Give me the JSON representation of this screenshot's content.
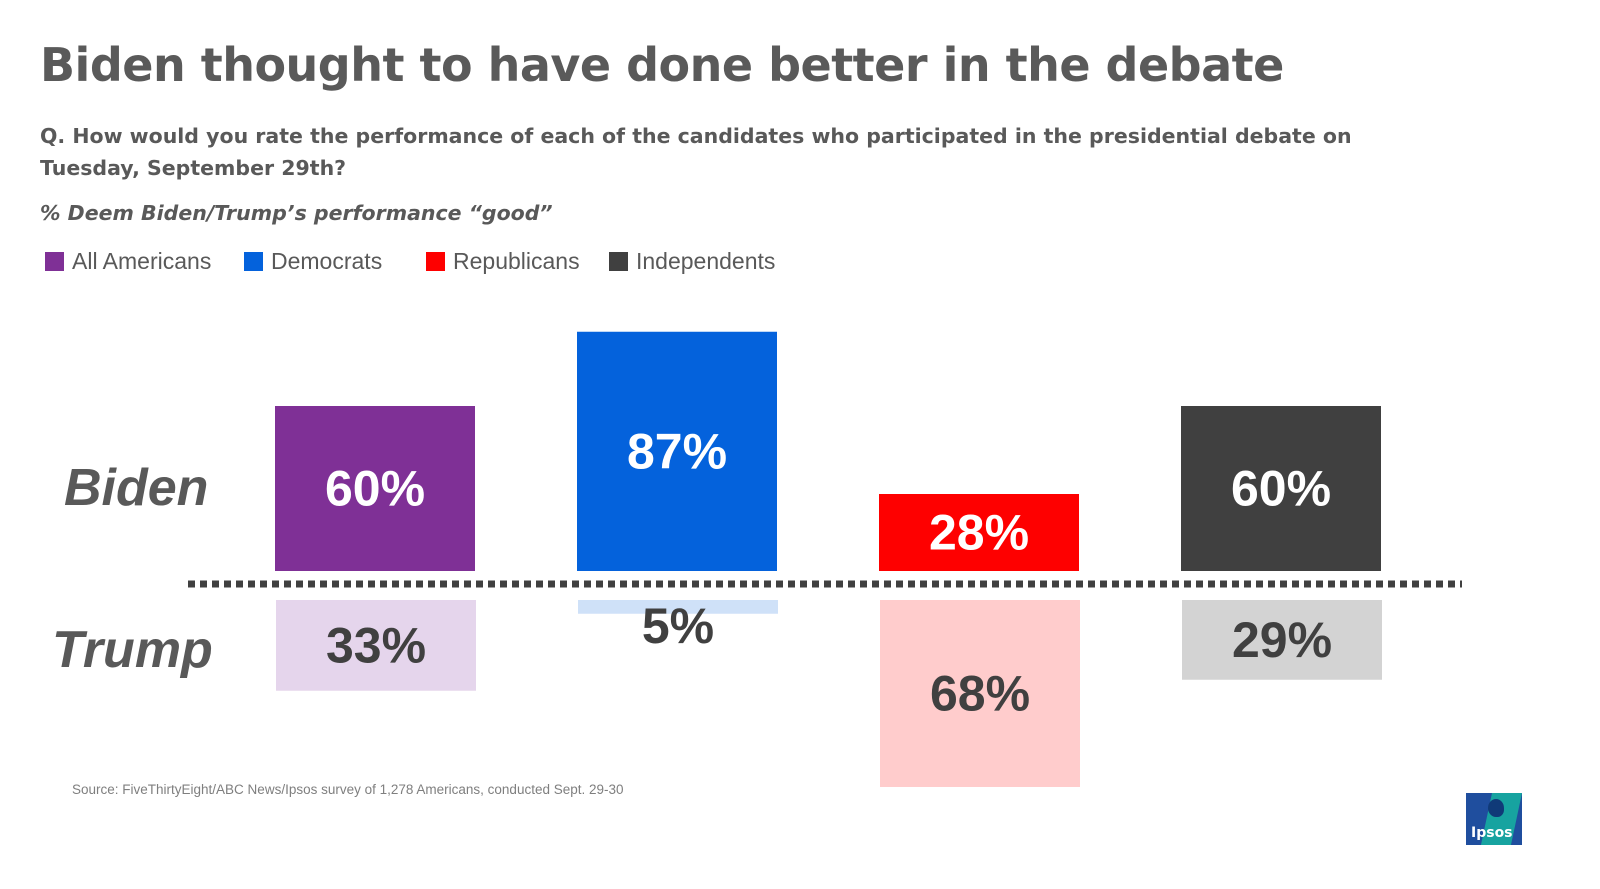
{
  "header": {
    "title": "Biden thought to have done better in the debate",
    "question": "Q. How would you rate the performance of each of the candidates who participated in the presidential debate on Tuesday, September 29th?",
    "metric": "% Deem Biden/Trump’s performance “good”"
  },
  "legend": [
    {
      "label": "All Americans",
      "color": "#7f3096"
    },
    {
      "label": "Democrats",
      "color": "#0462dc"
    },
    {
      "label": "Republicans",
      "color": "#fe0000"
    },
    {
      "label": "Independents",
      "color": "#404040"
    }
  ],
  "rows": {
    "top": "Biden",
    "bottom": "Trump"
  },
  "chart_data": {
    "type": "bar",
    "categories": [
      "All Americans",
      "Democrats",
      "Republicans",
      "Independents"
    ],
    "series": [
      {
        "name": "Biden",
        "values": [
          60,
          87,
          28,
          60
        ],
        "labels": [
          "60%",
          "87%",
          "28%",
          "60%"
        ],
        "colors": [
          "#7f3096",
          "#0462dc",
          "#fe0000",
          "#404040"
        ],
        "label_color": "#ffffff"
      },
      {
        "name": "Trump",
        "values": [
          33,
          5,
          68,
          29
        ],
        "labels": [
          "33%",
          "5%",
          "68%",
          "29%"
        ],
        "colors": [
          "#e5d5ec",
          "#cfe1f8",
          "#ffcccc",
          "#d3d3d3"
        ],
        "label_color": "#404040"
      }
    ],
    "ylim": [
      0,
      100
    ],
    "divider_color": "#404040"
  },
  "footer": {
    "source": "Source: FiveThirtyEight/ABC News/Ipsos survey of  1,278 Americans, conducted Sept. 29-30",
    "logo_text": "Ipsos"
  }
}
